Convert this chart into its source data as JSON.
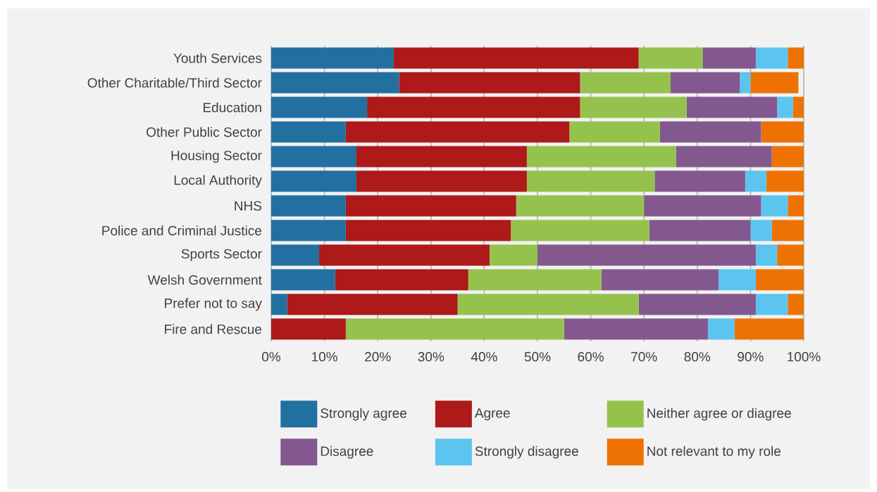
{
  "chart_data": {
    "type": "bar",
    "orientation": "horizontal",
    "stacked": true,
    "grid": "x",
    "legend": "bottom",
    "categories": [
      "Youth Services",
      "Other Charitable/Third Sector",
      "Education",
      "Other Public Sector",
      "Housing Sector",
      "Local Authority",
      "NHS",
      "Police and Criminal Justice",
      "Sports Sector",
      "Welsh Government",
      "Prefer not to say",
      "Fire and Rescue"
    ],
    "xlim": [
      0,
      100
    ],
    "xticks": [
      {
        "value": 0,
        "label": "0%"
      },
      {
        "value": 10,
        "label": "10%"
      },
      {
        "value": 20,
        "label": "20%"
      },
      {
        "value": 30,
        "label": "30%"
      },
      {
        "value": 40,
        "label": "40%"
      },
      {
        "value": 50,
        "label": "50%"
      },
      {
        "value": 60,
        "label": "60%"
      },
      {
        "value": 70,
        "label": "70%"
      },
      {
        "value": 80,
        "label": "80%"
      },
      {
        "value": 90,
        "label": "90%"
      },
      {
        "value": 100,
        "label": "100%"
      }
    ],
    "series": [
      {
        "name": "Strongly agree",
        "color": "#2270a0",
        "values": [
          23,
          24,
          18,
          14,
          16,
          16,
          14,
          14,
          9,
          12,
          3,
          0
        ]
      },
      {
        "name": "Agree",
        "color": "#ae1919",
        "values": [
          46,
          34,
          40,
          42,
          32,
          32,
          32,
          31,
          32,
          25,
          32,
          14
        ]
      },
      {
        "name": "Neither agree or diagree",
        "color": "#95c24d",
        "values": [
          12,
          17,
          20,
          17,
          28,
          24,
          24,
          26,
          9,
          25,
          34,
          41
        ]
      },
      {
        "name": "Disagree",
        "color": "#83588f",
        "values": [
          10,
          13,
          17,
          19,
          18,
          17,
          22,
          19,
          41,
          22,
          22,
          27
        ]
      },
      {
        "name": "Strongly disagree",
        "color": "#5bc5f0",
        "values": [
          6,
          2,
          3,
          0,
          0,
          4,
          5,
          4,
          4,
          7,
          6,
          5
        ]
      },
      {
        "name": "Not relevant to my role",
        "color": "#ee7203",
        "values": [
          3,
          9,
          2,
          8,
          6,
          7,
          3,
          6,
          5,
          9,
          3,
          13
        ]
      }
    ]
  }
}
